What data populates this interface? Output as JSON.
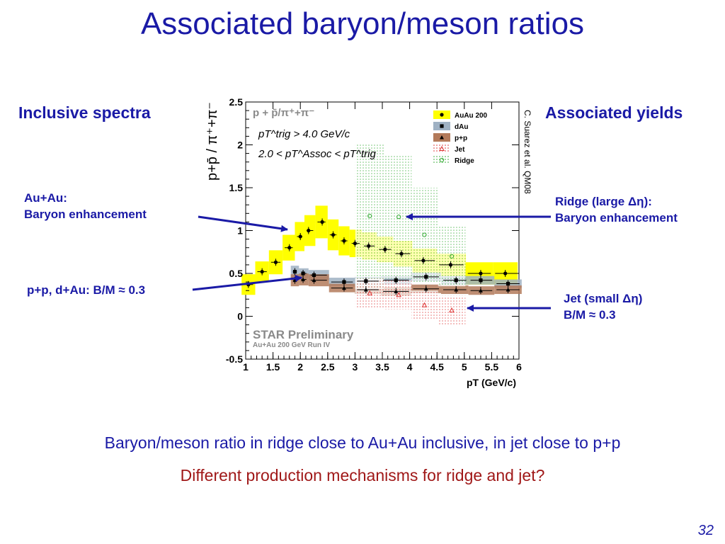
{
  "slide": {
    "title": "Associated baryon/meson ratios",
    "page_number": "32",
    "left_heading": "Inclusive spectra",
    "right_heading": "Associated yields",
    "annotations": {
      "auau_line1": "Au+Au:",
      "auau_line2": "Baryon enhancement",
      "pp_dau": "p+p, d+Au: B/M ≈ 0.3",
      "ridge_line1": "Ridge (large Δη):",
      "ridge_line2": "Baryon enhancement",
      "jet_line1": "Jet (small Δη)",
      "jet_line2": "B/M ≈ 0.3"
    },
    "conclusion_1": "Baryon/meson ratio in ridge close to Au+Au inclusive, in jet close to p+p",
    "conclusion_2": "Different production mechanisms for ridge and jet?",
    "colors": {
      "title_blue": "#1a1aa6",
      "question_red": "#a01818",
      "conclusion_blue": "#1a1aa6"
    }
  },
  "chart_data": {
    "type": "scatter",
    "title": "p + p̄/π⁺+π⁻",
    "ylabel": "p+p̄ / π⁺+π⁻",
    "xlabel": "pT (GeV/c)",
    "xlim": [
      1,
      6
    ],
    "ylim": [
      -0.5,
      2.5
    ],
    "x_ticks": [
      "1",
      "1.5",
      "2",
      "2.5",
      "3",
      "3.5",
      "4",
      "4.5",
      "5",
      "5.5",
      "6"
    ],
    "y_ticks": [
      "-0.5",
      "0",
      "0.5",
      "1",
      "1.5",
      "2",
      "2.5"
    ],
    "cuts": {
      "trig": "pT^trig > 4.0 GeV/c",
      "assoc": "2.0 < pT^Assoc < pT^trig"
    },
    "watermark": "STAR Preliminary",
    "subwatermark": "Au+Au 200 GeV Run IV",
    "credit": "C. Suarez et al. QM08",
    "legend": [
      "AuAu 200",
      "dAu",
      "p+p",
      "Jet",
      "Ridge"
    ],
    "series": [
      {
        "name": "AuAu 200",
        "color": "#000000",
        "band_color": "#ffff00",
        "marker": "circle",
        "x": [
          1.05,
          1.3,
          1.55,
          1.8,
          2.0,
          2.15,
          2.4,
          2.6,
          2.8,
          3.0,
          3.25,
          3.55,
          3.85,
          4.25,
          4.75,
          5.3,
          5.75
        ],
        "y": [
          0.37,
          0.52,
          0.63,
          0.8,
          0.93,
          1.0,
          1.1,
          0.95,
          0.88,
          0.85,
          0.82,
          0.78,
          0.73,
          0.65,
          0.6,
          0.5,
          0.5
        ],
        "band": [
          0.12,
          0.12,
          0.14,
          0.15,
          0.17,
          0.18,
          0.19,
          0.18,
          0.17,
          0.16,
          0.16,
          0.15,
          0.15,
          0.14,
          0.13,
          0.13,
          0.13
        ]
      },
      {
        "name": "dAu",
        "color": "#000000",
        "band_color": "#9fb1c3",
        "marker": "square",
        "x": [
          1.9,
          2.05,
          2.25,
          2.8,
          3.2,
          3.75,
          4.3,
          4.85,
          5.3,
          5.8
        ],
        "y": [
          0.52,
          0.5,
          0.48,
          0.4,
          0.41,
          0.42,
          0.46,
          0.42,
          0.42,
          0.38
        ],
        "band": [
          0.07,
          0.06,
          0.06,
          0.05,
          0.05,
          0.05,
          0.05,
          0.05,
          0.05,
          0.05
        ]
      },
      {
        "name": "p+p",
        "color": "#000000",
        "band_color": "#b37a5a",
        "marker": "triangle",
        "x": [
          1.9,
          2.05,
          2.25,
          2.8,
          3.2,
          3.75,
          4.3,
          4.85,
          5.3,
          5.8
        ],
        "y": [
          0.42,
          0.43,
          0.42,
          0.33,
          0.31,
          0.29,
          0.32,
          0.31,
          0.3,
          0.31
        ],
        "band": [
          0.07,
          0.07,
          0.07,
          0.05,
          0.05,
          0.05,
          0.05,
          0.05,
          0.05,
          0.05
        ]
      },
      {
        "name": "Ridge",
        "color": "#33aa33",
        "band_color": "#33aa33",
        "marker": "open-circle",
        "x": [
          3.27,
          3.8,
          4.27,
          4.77
        ],
        "y": [
          1.17,
          1.16,
          0.95,
          0.7
        ],
        "band": [
          0.85,
          0.72,
          0.55,
          0.35
        ]
      },
      {
        "name": "Jet",
        "color": "#dd3333",
        "band_color": "#dd3333",
        "marker": "open-triangle",
        "x": [
          3.27,
          3.8,
          4.27,
          4.77
        ],
        "y": [
          0.27,
          0.25,
          0.13,
          0.07
        ],
        "band": [
          0.17,
          0.17,
          0.17,
          0.17
        ]
      }
    ]
  }
}
